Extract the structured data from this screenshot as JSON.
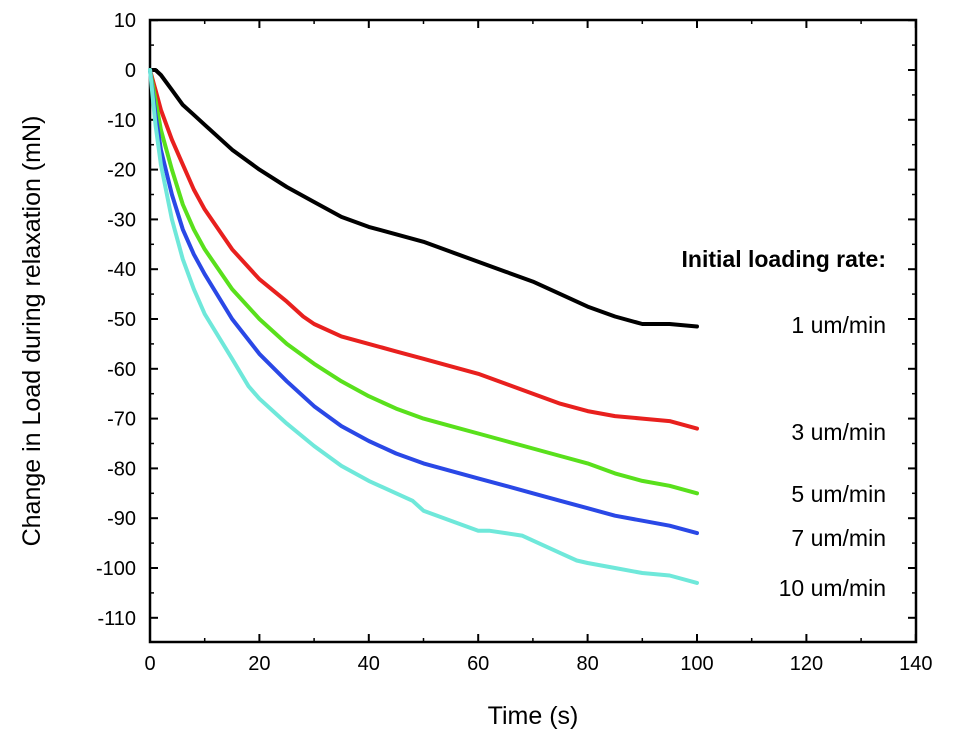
{
  "chart_data": {
    "type": "line",
    "xlabel": "Time (s)",
    "ylabel": "Change in Load during relaxation (mN)",
    "xlim": [
      0,
      140
    ],
    "ylim": [
      -115,
      10
    ],
    "xticks": [
      0,
      20,
      40,
      60,
      80,
      100,
      120,
      140
    ],
    "yticks": [
      10,
      0,
      -10,
      -20,
      -30,
      -40,
      -50,
      -60,
      -70,
      -80,
      -90,
      -100,
      -110
    ],
    "grid": false,
    "legend_title": "Initial loading rate:",
    "legend_placement": "right, labels beside line ends",
    "series": [
      {
        "name": "1 um/min",
        "color": "#000000",
        "x": [
          0,
          1,
          2,
          4,
          6,
          8,
          10,
          12,
          15,
          20,
          25,
          30,
          35,
          40,
          45,
          50,
          55,
          60,
          65,
          70,
          75,
          80,
          85,
          90,
          92,
          95,
          100
        ],
        "y": [
          0,
          0,
          -1,
          -4,
          -7,
          -9,
          -11,
          -13,
          -16,
          -20,
          -23.5,
          -26.5,
          -29.5,
          -31.5,
          -33,
          -34.5,
          -36.5,
          -38.5,
          -40.5,
          -42.5,
          -45,
          -47.5,
          -49.5,
          -51,
          -51,
          -51,
          -51.5
        ]
      },
      {
        "name": "3 um/min",
        "color": "#e8201e",
        "x": [
          0,
          1,
          2,
          4,
          6,
          8,
          10,
          15,
          20,
          25,
          28,
          30,
          35,
          40,
          45,
          50,
          55,
          60,
          65,
          70,
          75,
          80,
          85,
          90,
          95,
          100
        ],
        "y": [
          0,
          -4,
          -8,
          -14,
          -19,
          -24,
          -28,
          -36,
          -42,
          -46.5,
          -49.5,
          -51,
          -53.5,
          -55,
          -56.5,
          -58,
          -59.5,
          -61,
          -63,
          -65,
          -67,
          -68.5,
          -69.5,
          -70,
          -70.5,
          -72
        ]
      },
      {
        "name": "5 um/min",
        "color": "#59e01c",
        "x": [
          0,
          1,
          2,
          4,
          6,
          8,
          10,
          15,
          20,
          25,
          30,
          35,
          40,
          45,
          50,
          55,
          60,
          65,
          70,
          75,
          80,
          85,
          90,
          95,
          100
        ],
        "y": [
          0,
          -6,
          -12,
          -20,
          -27,
          -32,
          -36,
          -44,
          -50,
          -55,
          -59,
          -62.5,
          -65.5,
          -68,
          -70,
          -71.5,
          -73,
          -74.5,
          -76,
          -77.5,
          -79,
          -81,
          -82.5,
          -83.5,
          -85
        ]
      },
      {
        "name": "7 um/min",
        "color": "#2a48e6",
        "x": [
          0,
          1,
          2,
          4,
          6,
          8,
          10,
          15,
          20,
          25,
          30,
          35,
          40,
          45,
          50,
          55,
          60,
          65,
          70,
          75,
          80,
          85,
          90,
          95,
          100
        ],
        "y": [
          0,
          -9,
          -16,
          -25,
          -32,
          -37,
          -41,
          -50,
          -57,
          -62.5,
          -67.5,
          -71.5,
          -74.5,
          -77,
          -79,
          -80.5,
          -82,
          -83.5,
          -85,
          -86.5,
          -88,
          -89.5,
          -90.5,
          -91.5,
          -93
        ]
      },
      {
        "name": "10 um/min",
        "color": "#6fe8da",
        "x": [
          0,
          1,
          2,
          4,
          6,
          8,
          10,
          15,
          18,
          20,
          25,
          30,
          35,
          40,
          45,
          48,
          50,
          55,
          60,
          62,
          65,
          68,
          70,
          75,
          78,
          80,
          85,
          90,
          95,
          100
        ],
        "y": [
          0,
          -11,
          -19,
          -30,
          -38,
          -44,
          -49,
          -58,
          -63.5,
          -66,
          -71,
          -75.5,
          -79.5,
          -82.5,
          -85,
          -86.5,
          -88.5,
          -90.5,
          -92.5,
          -92.5,
          -93,
          -93.5,
          -94.5,
          -97,
          -98.5,
          -99,
          -100,
          -101,
          -101.5,
          -103
        ]
      }
    ]
  }
}
